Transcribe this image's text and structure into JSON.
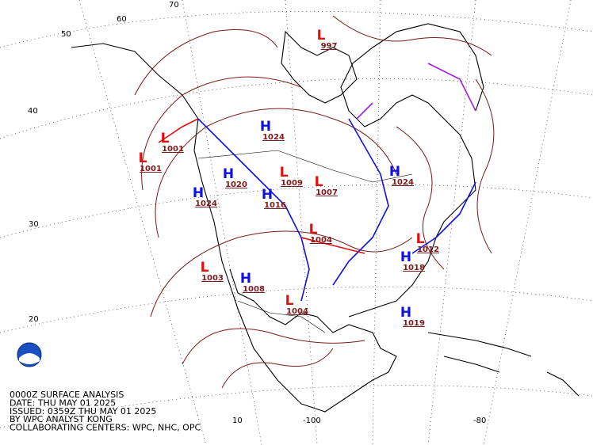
{
  "caption": [
    "0000Z SURFACE ANALYSIS",
    "DATE: THU MAY 01 2025",
    "ISSUED: 0359Z THU MAY 01 2025",
    "BY WPC ANALYST KONG",
    "COLLABORATING CENTERS: WPC, NHC, OPC"
  ],
  "latitude_labels": [
    "70",
    "60",
    "50",
    "40",
    "30",
    "20"
  ],
  "longitude_labels": [
    "10",
    "-100",
    "-80"
  ],
  "pressure_centers": [
    {
      "type": "L",
      "value": "997"
    },
    {
      "type": "L",
      "value": "1001"
    },
    {
      "type": "H",
      "value": "1024"
    },
    {
      "type": "H",
      "value": "1024"
    },
    {
      "type": "H",
      "value": "1024"
    },
    {
      "type": "H",
      "value": "1020"
    },
    {
      "type": "H",
      "value": "1016"
    },
    {
      "type": "L",
      "value": "1009"
    },
    {
      "type": "L",
      "value": "1007"
    },
    {
      "type": "L",
      "value": "1004"
    },
    {
      "type": "H",
      "value": "1018"
    },
    {
      "type": "H",
      "value": "1019"
    },
    {
      "type": "L",
      "value": "1003"
    },
    {
      "type": "H",
      "value": "1008"
    },
    {
      "type": "L",
      "value": "1004"
    },
    {
      "type": "L",
      "value": "1012"
    },
    {
      "type": "L",
      "value": "1001"
    }
  ]
}
